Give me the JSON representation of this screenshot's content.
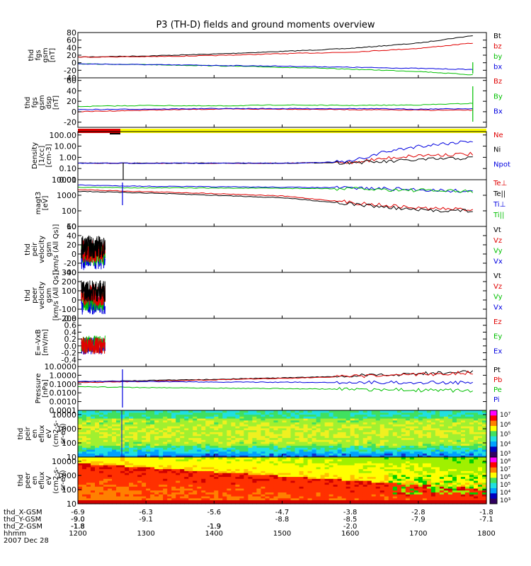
{
  "title": "P3 (TH-D) fields and ground moments overview",
  "colors": {
    "black": "#000000",
    "red": "#e00000",
    "green": "#00c000",
    "blue": "#0000e0",
    "yellow": "#ffff00"
  },
  "chart_data": [
    {
      "type": "line",
      "ylabel": [
        "thd",
        "fgs",
        "gsm",
        "[nT]"
      ],
      "ylim": [
        -40,
        80
      ],
      "ticks": [
        "80",
        "60",
        "40",
        "20",
        "0",
        "-20",
        "-40"
      ],
      "series": [
        {
          "name": "Bt",
          "color": "black",
          "x": [
            1200,
            1300,
            1400,
            1500,
            1600,
            1700,
            1780
          ],
          "y": [
            15,
            18,
            23,
            30,
            38,
            52,
            72
          ]
        },
        {
          "name": "bz",
          "color": "red",
          "x": [
            1200,
            1300,
            1400,
            1500,
            1600,
            1700,
            1780
          ],
          "y": [
            15,
            16,
            19,
            24,
            28,
            38,
            52
          ]
        },
        {
          "name": "by",
          "color": "green",
          "x": [
            1200,
            1300,
            1400,
            1500,
            1600,
            1700,
            1780
          ],
          "y": [
            -3,
            -5,
            -8,
            -12,
            -17,
            -23,
            -32
          ]
        },
        {
          "name": "bx",
          "color": "blue",
          "x": [
            1200,
            1300,
            1400,
            1500,
            1600,
            1700,
            1780
          ],
          "y": [
            -3,
            -5,
            -7,
            -9,
            -12,
            -15,
            -18
          ]
        }
      ]
    },
    {
      "type": "line",
      "ylabel": [
        "thd",
        "fgs",
        "gsm",
        "dsp",
        "[nT]"
      ],
      "ylim": [
        -30,
        65
      ],
      "ticks": [
        "60",
        "40",
        "20",
        "0",
        "-20"
      ],
      "series": [
        {
          "name": "Bz",
          "color": "red",
          "x": [
            1200,
            1300,
            1400,
            1500,
            1600,
            1700,
            1780
          ],
          "y": [
            0,
            3,
            5,
            5,
            4,
            3,
            3
          ]
        },
        {
          "name": "By",
          "color": "green",
          "x": [
            1200,
            1300,
            1400,
            1500,
            1600,
            1700,
            1780
          ],
          "y": [
            10,
            12,
            11,
            13,
            12,
            13,
            16
          ]
        },
        {
          "name": "Bx",
          "color": "blue",
          "x": [
            1200,
            1300,
            1400,
            1500,
            1600,
            1700,
            1780
          ],
          "y": [
            4,
            5,
            6,
            6,
            6,
            5,
            6
          ]
        }
      ]
    },
    {
      "type": "line",
      "ylabel": [
        "Density",
        "[1/cc]",
        "[cm-3]"
      ],
      "log": true,
      "ylim": [
        0.01,
        200
      ],
      "ticks": [
        "100.00",
        "10.00",
        "1.00",
        "0.10",
        "0.01"
      ],
      "series": [
        {
          "name": "Ne",
          "color": "red",
          "x": [
            1200,
            1300,
            1400,
            1500,
            1600,
            1650,
            1700,
            1780
          ],
          "y": [
            0.3,
            0.3,
            0.3,
            0.3,
            0.35,
            0.8,
            1.5,
            2
          ]
        },
        {
          "name": "Ni",
          "color": "black",
          "x": [
            1200,
            1300,
            1400,
            1500,
            1600,
            1650,
            1700,
            1780
          ],
          "y": [
            0.3,
            0.3,
            0.3,
            0.3,
            0.35,
            0.4,
            0.6,
            0.9
          ]
        },
        {
          "name": "Npot",
          "color": "blue",
          "x": [
            1200,
            1300,
            1400,
            1500,
            1600,
            1650,
            1700,
            1780
          ],
          "y": [
            0.3,
            0.3,
            0.3,
            0.3,
            0.4,
            3,
            10,
            30
          ]
        }
      ]
    },
    {
      "type": "line",
      "ylabel": [
        "magt3",
        "[eV]"
      ],
      "log": true,
      "ylim": [
        10,
        10000
      ],
      "ticks": [
        "10000",
        "1000",
        "100",
        "10"
      ],
      "series": [
        {
          "name": "Te⊥",
          "color": "red",
          "x": [
            1200,
            1300,
            1400,
            1500,
            1600,
            1700,
            1780
          ],
          "y": [
            2300,
            1700,
            1300,
            900,
            350,
            150,
            120
          ]
        },
        {
          "name": "Te||",
          "color": "black",
          "x": [
            1200,
            1300,
            1400,
            1500,
            1600,
            1700,
            1780
          ],
          "y": [
            1800,
            1400,
            1000,
            700,
            280,
            110,
            100
          ]
        },
        {
          "name": "Ti⊥",
          "color": "blue",
          "x": [
            1200,
            1300,
            1400,
            1500,
            1600,
            1700,
            1780
          ],
          "y": [
            4500,
            3800,
            3500,
            3300,
            3000,
            2300,
            1800
          ]
        },
        {
          "name": "Ti||",
          "color": "green",
          "x": [
            1200,
            1300,
            1400,
            1500,
            1600,
            1700,
            1780
          ],
          "y": [
            3300,
            3000,
            2900,
            2800,
            2600,
            2100,
            1700
          ]
        }
      ]
    },
    {
      "type": "line",
      "ylabel": [
        "thd",
        "peir",
        "velocity",
        "gsm",
        "[km/s (All Qs)]"
      ],
      "ylim": [
        -40,
        60
      ],
      "ticks": [
        "60",
        "40",
        "20",
        "0",
        "-20",
        "-40"
      ],
      "legend": [
        "Vt",
        "Vz",
        "Vy",
        "Vx"
      ],
      "series": [
        {
          "name": "Vt",
          "color": "black",
          "x": [
            1205,
            1240
          ],
          "y": [
            20,
            20
          ]
        }
      ]
    },
    {
      "type": "line",
      "ylabel": [
        "thd",
        "peer",
        "velocity",
        "gsm",
        "[km/s (All Qs)]"
      ],
      "ylim": [
        -200,
        300
      ],
      "ticks": [
        "300",
        "200",
        "100",
        "0",
        "-100",
        "-200"
      ],
      "legend": [
        "Vt",
        "Vz",
        "Vy",
        "Vx"
      ],
      "series": [
        {
          "name": "Vt",
          "color": "black",
          "x": [
            1205,
            1240
          ],
          "y": [
            100,
            100
          ]
        }
      ]
    },
    {
      "type": "line",
      "ylabel": [
        "E=-VxB",
        "[mV/m]"
      ],
      "ylim": [
        -0.6,
        0.8
      ],
      "ticks": [
        "0.8",
        "0.6",
        "0.4",
        "0.2",
        "0.0",
        "-0.2",
        "-0.4"
      ],
      "legend": [
        "Ez",
        "Ey",
        "Ex"
      ],
      "series": [
        {
          "name": "Ez",
          "color": "red",
          "x": [
            1205,
            1240
          ],
          "y": [
            0,
            0
          ]
        }
      ]
    },
    {
      "type": "line",
      "ylabel": [
        "Pressure",
        "[nPa]"
      ],
      "log": true,
      "ylim": [
        0.0001,
        10
      ],
      "ticks": [
        "10.0000",
        "1.0000",
        "0.1000",
        "0.0100",
        "0.0010",
        "0.0001"
      ],
      "series": [
        {
          "name": "Pt",
          "color": "black",
          "x": [
            1200,
            1300,
            1400,
            1500,
            1600,
            1700,
            1780
          ],
          "y": [
            0.18,
            0.25,
            0.35,
            0.5,
            0.8,
            1.5,
            2.5
          ]
        },
        {
          "name": "Pb",
          "color": "red",
          "x": [
            1200,
            1300,
            1400,
            1500,
            1600,
            1700,
            1780
          ],
          "y": [
            0.15,
            0.2,
            0.3,
            0.45,
            0.7,
            1.2,
            2.0
          ]
        },
        {
          "name": "Pe",
          "color": "green",
          "x": [
            1200,
            1300,
            1400,
            1500,
            1600,
            1700,
            1780
          ],
          "y": [
            0.05,
            0.04,
            0.035,
            0.03,
            0.025,
            0.02,
            0.018
          ]
        },
        {
          "name": "Pi",
          "color": "blue",
          "x": [
            1200,
            1300,
            1400,
            1500,
            1600,
            1700,
            1780
          ],
          "y": [
            0.2,
            0.19,
            0.17,
            0.16,
            0.15,
            0.15,
            0.14
          ]
        }
      ]
    },
    {
      "type": "heatmap",
      "ylabel": [
        "thd",
        "peir",
        "en",
        "eflux",
        "eV",
        "(cm2-s-",
        "sr-eV)"
      ],
      "log": true,
      "ylim": [
        10,
        20000
      ],
      "ticks": [
        "10000",
        "1000",
        "100",
        "10"
      ],
      "colorbar": [
        "10⁷",
        "10⁶",
        "10⁵",
        "10⁴",
        "10³"
      ]
    },
    {
      "type": "heatmap",
      "ylabel": [
        "thd",
        "peer",
        "en",
        "eflux",
        "eV",
        "(cm2-s-",
        "sr-eV)"
      ],
      "log": true,
      "ylim": [
        10,
        20000
      ],
      "ticks": [
        "10000",
        "1000",
        "100",
        "10"
      ],
      "colorbar": [
        "10⁸",
        "10⁷",
        "10⁶",
        "10⁵",
        "10⁴",
        "10³"
      ]
    }
  ],
  "legends": [
    [
      "Bt",
      "bz",
      "by",
      "bx"
    ],
    [
      "Bz",
      "By",
      "Bx"
    ],
    [
      "Ne",
      "Ni",
      "Npot"
    ],
    [
      "Te⊥",
      "Te||",
      "Ti⊥",
      "Ti||"
    ],
    [
      "Vt",
      "Vz",
      "Vy",
      "Vx"
    ],
    [
      "Vt",
      "Vz",
      "Vy",
      "Vx"
    ],
    [
      "Ez",
      "Ey",
      "Ex"
    ],
    [
      "Pt",
      "Pb",
      "Pe",
      "Pi"
    ]
  ],
  "xaxis": {
    "rows": [
      {
        "label": "thd_X-GSM",
        "values": [
          "-6.9",
          "-6.3",
          "-5.6",
          "-4.7",
          "-3.8",
          "-2.8",
          "-1.8"
        ]
      },
      {
        "label": "thd_Y-GSM",
        "values": [
          "-9.0",
          "-9.1",
          "-9.0",
          "-8.8",
          "-8.5",
          "-7.9",
          "-7.1"
        ]
      },
      {
        "label": "thd_Z-GSM",
        "values": [
          "-1.8",
          "-1.8",
          "-1.9",
          "-1.9",
          "-2.0",
          "-1.9",
          "-1.8"
        ]
      },
      {
        "label": "hhmm",
        "values": [
          "1200",
          "1300",
          "1400",
          "1500",
          "1600",
          "1700",
          "1800"
        ]
      }
    ],
    "date": "2007 Dec 28",
    "range": [
      1200,
      1800
    ]
  }
}
